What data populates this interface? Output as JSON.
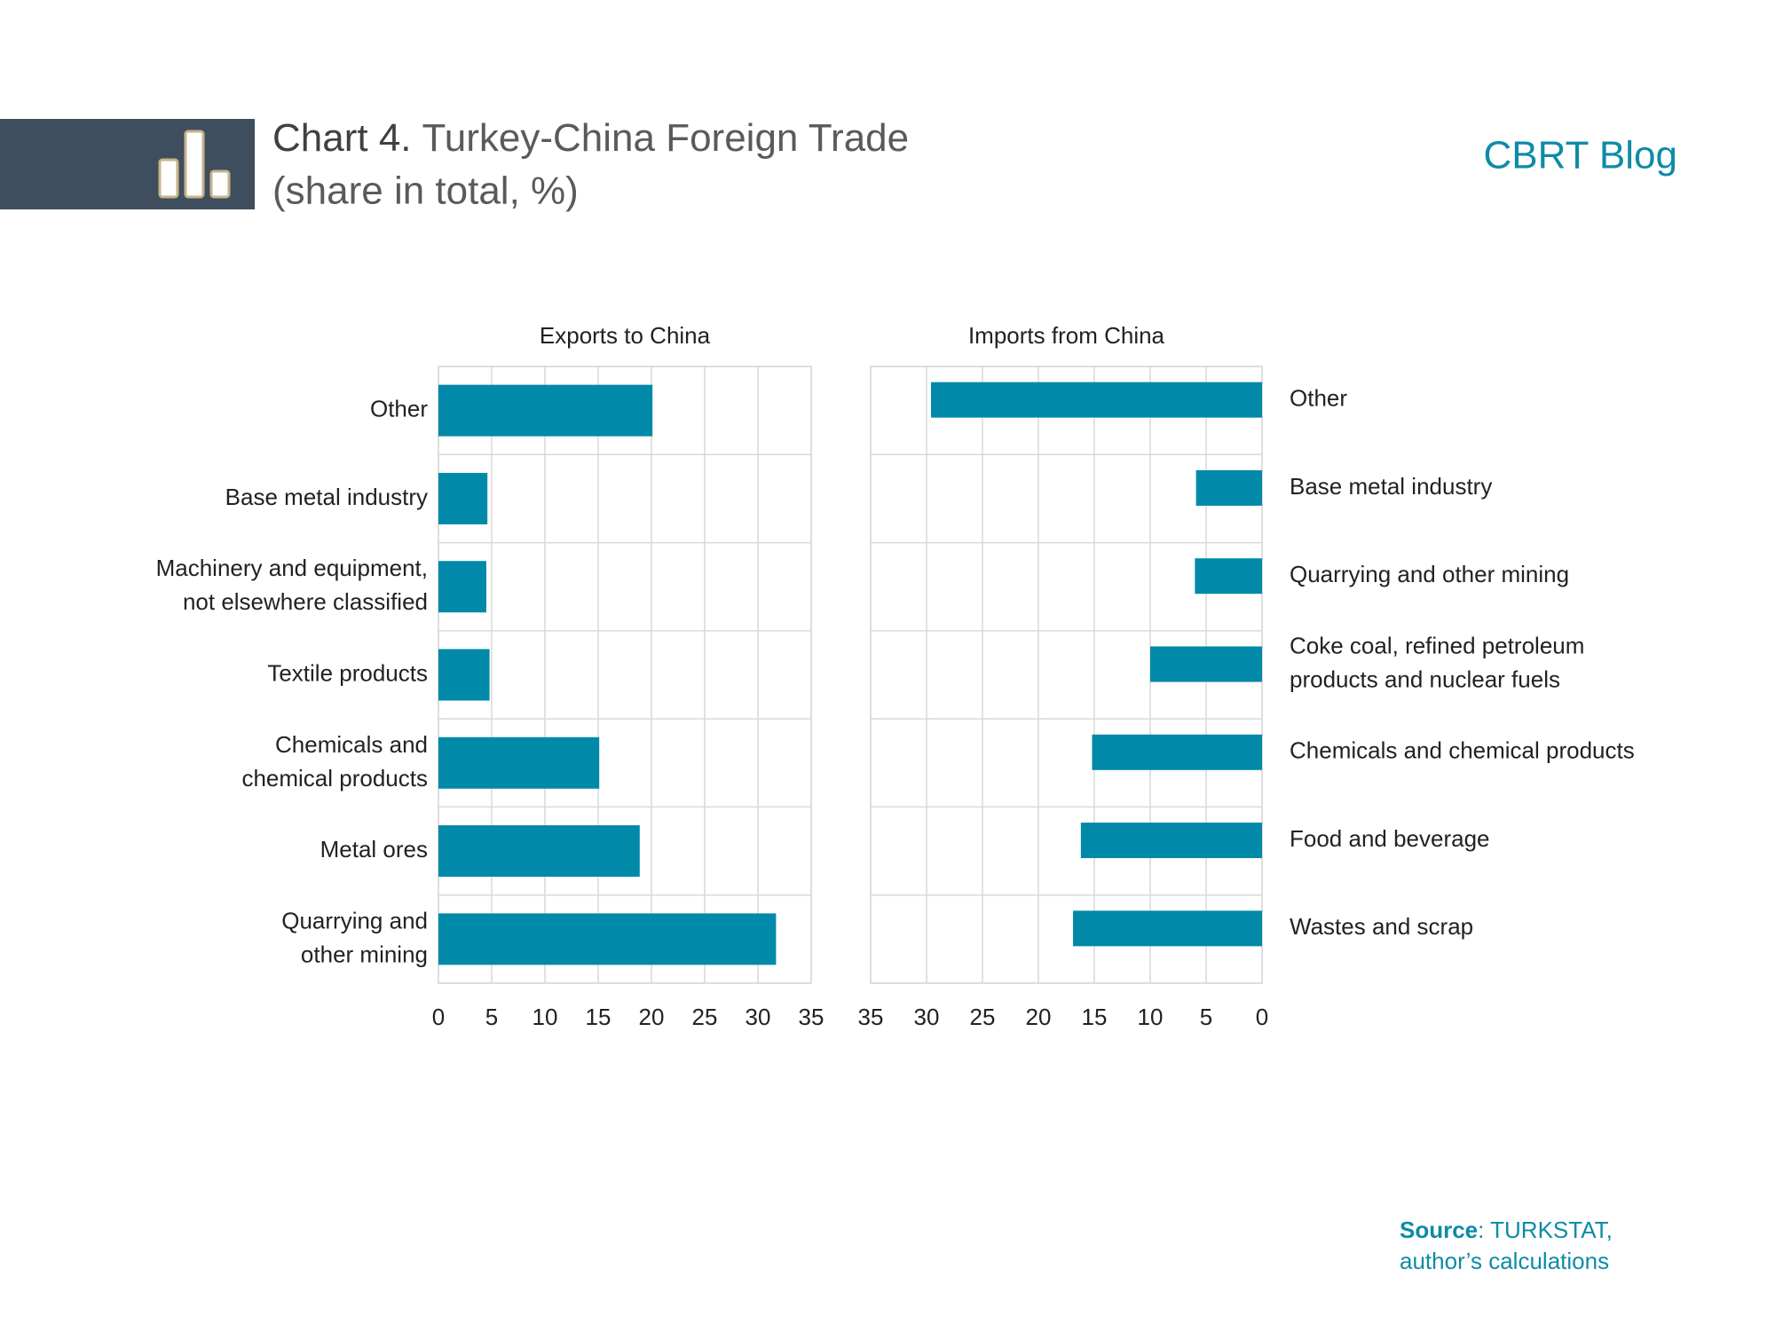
{
  "header": {
    "chart_number": "Chart 4.",
    "title": "Turkey-China Foreign Trade",
    "subtitle": "(share in total, %)",
    "brand": "CBRT Blog"
  },
  "source": {
    "label": "Source",
    "lines": [
      ": TURKSTAT,",
      "author’s calculations"
    ]
  },
  "chart_data": [
    {
      "type": "bar",
      "orientation": "horizontal",
      "title": "Exports to China",
      "label_side": "left",
      "reversed": false,
      "grid": true,
      "color": "#0089a8",
      "categories": [
        "Other",
        "Base metal industry",
        "Machinery and equipment,\nnot elsewhere classified",
        "Textile products",
        "Chemicals and\nchemical products",
        "Metal ores",
        "Quarrying and\nother mining"
      ],
      "values": [
        20.1,
        4.6,
        4.5,
        4.8,
        15.1,
        18.9,
        31.7
      ],
      "xlim": [
        0,
        35
      ],
      "xticks": [
        0,
        5,
        10,
        15,
        20,
        25,
        30,
        35
      ]
    },
    {
      "type": "bar",
      "orientation": "horizontal",
      "title": "Imports from China",
      "label_side": "right",
      "reversed": true,
      "grid": true,
      "color": "#0089a8",
      "categories": [
        "Other",
        "Base metal industry",
        "Quarrying and other mining",
        "Coke coal, refined petroleum\nproducts and nuclear fuels",
        "Chemicals and chemical products",
        "Food and beverage",
        "Wastes and scrap"
      ],
      "values": [
        29.6,
        5.9,
        6.0,
        10.0,
        15.2,
        16.2,
        16.9
      ],
      "xlim": [
        0,
        35
      ],
      "xticks": [
        0,
        5,
        10,
        15,
        20,
        25,
        30,
        35
      ]
    }
  ]
}
